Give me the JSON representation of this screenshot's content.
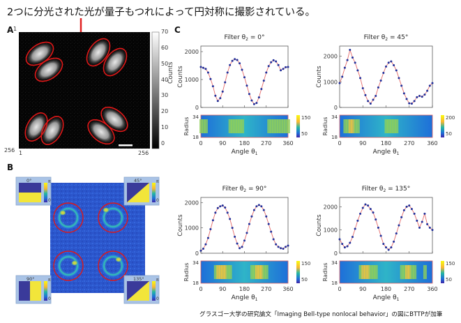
{
  "headline": "2つに分光された光が量子もつれによって円対称に撮影されている。",
  "caption": "グラスゴー大学の研究論文「Imaging Bell-type nonlocal behavior」の図にBTTPが加筆",
  "panel_a": {
    "letter": "A",
    "axis_min": "1",
    "axis_max": "256",
    "colorbar_label": "Counts",
    "colorbar_ticks": [
      "70",
      "60",
      "50",
      "40",
      "30",
      "20",
      "10",
      "0"
    ]
  },
  "panel_b": {
    "letter": "B",
    "insets": [
      {
        "angle": "0°",
        "pi": "π",
        "zero": "0"
      },
      {
        "angle": "45°",
        "pi": "π",
        "zero": "0"
      },
      {
        "angle": "90°",
        "pi": "π",
        "zero": "0"
      },
      {
        "angle": "135°",
        "pi": "π",
        "zero": "0"
      }
    ]
  },
  "panel_c": {
    "letter": "C",
    "counts_label": "Counts",
    "radius_label": "Radius",
    "angle_label": "Angle",
    "theta_sub": "1",
    "x_ticks": [
      "0",
      "90",
      "180",
      "270",
      "360"
    ],
    "y_ticks": [
      "0",
      "1000",
      "2000"
    ],
    "radius_ticks": [
      "34",
      "18"
    ]
  },
  "chart_data": [
    {
      "type": "scatter",
      "title": "Filter θ2 = 0°",
      "title_prefix": "Filter  θ",
      "title_sub": "2",
      "title_suffix": " = 0°",
      "xlabel": "Angle θ1",
      "ylabel": "Counts",
      "xlim": [
        0,
        360
      ],
      "ylim": [
        0,
        2200
      ],
      "x": [
        0,
        10,
        20,
        30,
        40,
        50,
        60,
        70,
        80,
        90,
        100,
        110,
        120,
        130,
        140,
        150,
        160,
        170,
        180,
        190,
        200,
        210,
        220,
        230,
        240,
        250,
        260,
        270,
        280,
        290,
        300,
        310,
        320,
        330,
        340,
        350,
        360
      ],
      "y": [
        1450,
        1420,
        1380,
        1250,
        1020,
        760,
        420,
        230,
        330,
        570,
        900,
        1250,
        1520,
        1670,
        1730,
        1700,
        1580,
        1350,
        1080,
        780,
        480,
        250,
        120,
        160,
        360,
        660,
        960,
        1250,
        1480,
        1620,
        1690,
        1650,
        1520,
        1330,
        1380,
        1440,
        1450
      ],
      "colorbar_ticks": [
        "150",
        "50"
      ]
    },
    {
      "type": "scatter",
      "title": "Filter θ2 = 45°",
      "title_prefix": "Filter  θ",
      "title_sub": "2",
      "title_suffix": " = 45°",
      "xlabel": "Angle θ1",
      "ylabel": "Counts",
      "xlim": [
        0,
        360
      ],
      "ylim": [
        0,
        2400
      ],
      "x": [
        0,
        10,
        20,
        30,
        40,
        50,
        60,
        70,
        80,
        90,
        100,
        110,
        120,
        130,
        140,
        150,
        160,
        170,
        180,
        190,
        200,
        210,
        220,
        230,
        240,
        250,
        260,
        270,
        280,
        290,
        300,
        310,
        320,
        330,
        340,
        350,
        360
      ],
      "y": [
        950,
        1200,
        1550,
        1850,
        2250,
        1950,
        1750,
        1450,
        1150,
        750,
        480,
        250,
        150,
        300,
        450,
        780,
        1050,
        1350,
        1600,
        1750,
        1800,
        1650,
        1450,
        1150,
        850,
        550,
        330,
        160,
        150,
        250,
        400,
        450,
        420,
        500,
        650,
        850,
        950
      ],
      "colorbar_ticks": [
        "200",
        "50"
      ]
    },
    {
      "type": "scatter",
      "title": "Filter θ2 = 90°",
      "title_prefix": "Filter  θ",
      "title_sub": "2",
      "title_suffix": " = 90°",
      "xlabel": "Angle θ1",
      "ylabel": "Counts",
      "xlim": [
        0,
        360
      ],
      "ylim": [
        0,
        2200
      ],
      "x": [
        0,
        10,
        20,
        30,
        40,
        50,
        60,
        70,
        80,
        90,
        100,
        110,
        120,
        130,
        140,
        150,
        160,
        170,
        180,
        190,
        200,
        210,
        220,
        230,
        240,
        250,
        260,
        270,
        280,
        290,
        300,
        310,
        320,
        330,
        340,
        350,
        360
      ],
      "y": [
        100,
        180,
        350,
        600,
        950,
        1300,
        1600,
        1780,
        1850,
        1880,
        1800,
        1600,
        1350,
        1000,
        650,
        380,
        200,
        250,
        500,
        800,
        1150,
        1450,
        1700,
        1850,
        1900,
        1850,
        1700,
        1450,
        1150,
        850,
        550,
        350,
        250,
        200,
        180,
        250,
        300
      ],
      "colorbar_ticks": [
        "150",
        "50"
      ]
    },
    {
      "type": "scatter",
      "title": "Filter θ2 = 135°",
      "title_prefix": "Filter  θ",
      "title_sub": "2",
      "title_suffix": " = 135°",
      "xlabel": "Angle θ1",
      "ylabel": "Counts",
      "xlim": [
        0,
        360
      ],
      "ylim": [
        0,
        2400
      ],
      "x": [
        0,
        10,
        20,
        30,
        40,
        50,
        60,
        70,
        80,
        90,
        100,
        110,
        120,
        130,
        140,
        150,
        160,
        170,
        180,
        190,
        200,
        210,
        220,
        230,
        240,
        250,
        260,
        270,
        280,
        290,
        300,
        310,
        320,
        330,
        340,
        350,
        360
      ],
      "y": [
        600,
        400,
        250,
        300,
        450,
        700,
        1050,
        1400,
        1700,
        1950,
        2100,
        2050,
        1900,
        1750,
        1450,
        1100,
        750,
        400,
        250,
        150,
        250,
        500,
        850,
        1200,
        1550,
        1850,
        2000,
        2050,
        1900,
        1700,
        1400,
        1100,
        1350,
        1700,
        1250,
        1100,
        1000
      ],
      "colorbar_ticks": [
        "150",
        "50"
      ]
    }
  ]
}
